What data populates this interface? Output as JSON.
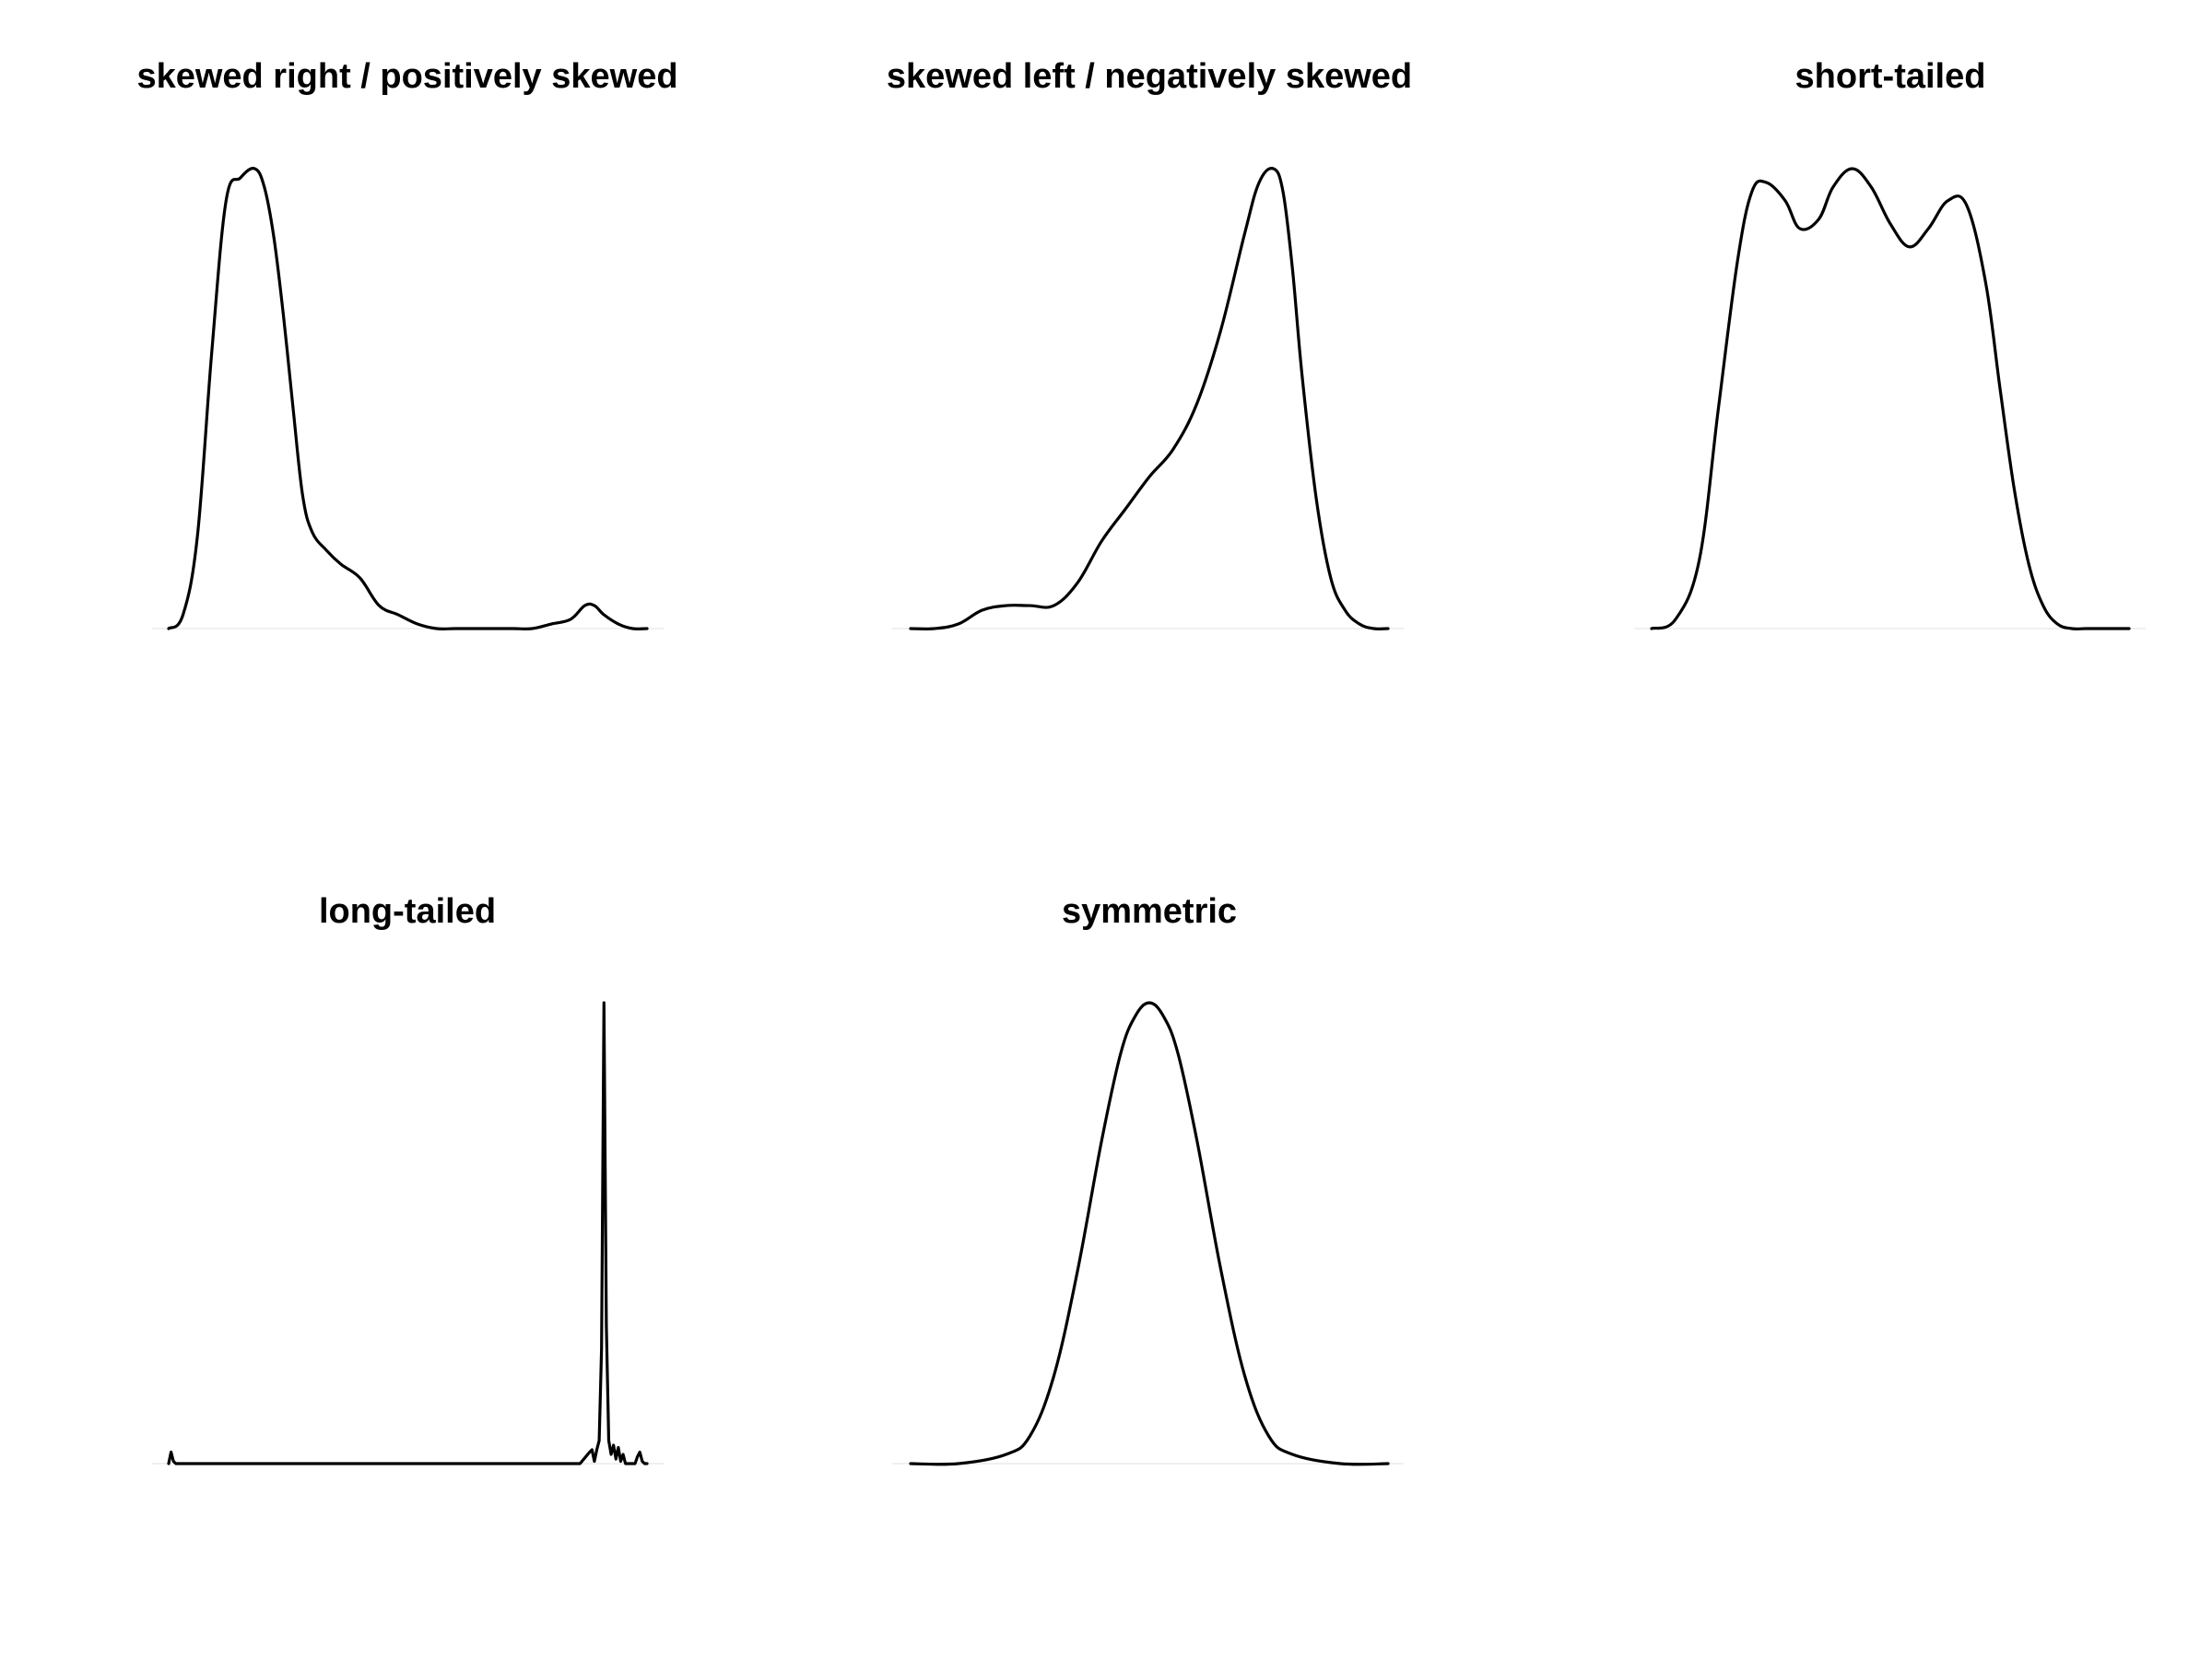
{
  "chart_data": [
    {
      "type": "line",
      "title": "skewed right / positively skewed",
      "xlabel": "",
      "ylabel": "",
      "grid": false,
      "x": [
        0.0,
        0.03,
        0.06,
        0.09,
        0.12,
        0.15,
        0.18,
        0.2,
        0.22,
        0.24,
        0.26,
        0.28,
        0.3,
        0.33,
        0.36,
        0.4,
        0.44,
        0.48,
        0.52,
        0.56,
        0.6,
        0.64,
        0.68,
        0.72,
        0.76,
        0.8,
        0.84,
        0.87,
        0.89,
        0.91,
        0.94,
        0.97,
        1.0
      ],
      "series": [
        {
          "values": [
            0.0,
            0.03,
            0.2,
            0.6,
            0.93,
            0.98,
            1.0,
            0.96,
            0.85,
            0.68,
            0.48,
            0.29,
            0.21,
            0.17,
            0.14,
            0.11,
            0.05,
            0.03,
            0.01,
            0.0,
            0.0,
            0.0,
            0.0,
            0.0,
            0.0,
            0.01,
            0.02,
            0.05,
            0.05,
            0.03,
            0.01,
            0.0,
            0.0
          ]
        }
      ]
    },
    {
      "type": "line",
      "title": "skewed left / negatively skewed",
      "xlabel": "",
      "ylabel": "",
      "grid": false,
      "x": [
        0.0,
        0.05,
        0.1,
        0.15,
        0.2,
        0.25,
        0.3,
        0.35,
        0.4,
        0.45,
        0.5,
        0.55,
        0.6,
        0.65,
        0.7,
        0.73,
        0.76,
        0.78,
        0.8,
        0.82,
        0.85,
        0.88,
        0.91,
        0.94,
        0.97,
        1.0
      ],
      "series": [
        {
          "values": [
            0.0,
            0.0,
            0.01,
            0.04,
            0.05,
            0.05,
            0.05,
            0.1,
            0.19,
            0.26,
            0.33,
            0.39,
            0.49,
            0.65,
            0.86,
            0.97,
            1.0,
            0.95,
            0.78,
            0.55,
            0.28,
            0.11,
            0.04,
            0.01,
            0.0,
            0.0
          ]
        }
      ]
    },
    {
      "type": "line",
      "title": "short-tailed",
      "xlabel": "",
      "ylabel": "",
      "grid": false,
      "x": [
        0.0,
        0.05,
        0.1,
        0.14,
        0.18,
        0.21,
        0.24,
        0.28,
        0.31,
        0.35,
        0.38,
        0.42,
        0.46,
        0.5,
        0.54,
        0.58,
        0.62,
        0.66,
        0.7,
        0.73,
        0.76,
        0.79,
        0.82,
        0.85,
        0.88,
        0.91,
        0.94,
        0.97,
        1.0
      ],
      "series": [
        {
          "values": [
            0.0,
            0.02,
            0.15,
            0.48,
            0.8,
            0.95,
            0.97,
            0.93,
            0.87,
            0.89,
            0.96,
            1.0,
            0.96,
            0.88,
            0.83,
            0.87,
            0.93,
            0.92,
            0.75,
            0.52,
            0.3,
            0.14,
            0.05,
            0.01,
            0.0,
            0.0,
            0.0,
            0.0,
            0.0
          ]
        }
      ]
    },
    {
      "type": "line",
      "title": "long-tailed",
      "xlabel": "",
      "ylabel": "",
      "grid": false,
      "x": [
        0.0,
        0.005,
        0.01,
        0.015,
        0.03,
        0.1,
        0.2,
        0.3,
        0.4,
        0.5,
        0.6,
        0.7,
        0.8,
        0.86,
        0.88,
        0.885,
        0.89,
        0.895,
        0.9,
        0.905,
        0.91,
        0.915,
        0.92,
        0.925,
        0.93,
        0.935,
        0.94,
        0.945,
        0.95,
        0.955,
        0.96,
        0.965,
        0.97,
        0.975,
        0.98,
        0.985,
        0.99,
        0.995,
        1.0
      ],
      "series": [
        {
          "values": [
            0.0,
            0.025,
            0.005,
            0.0,
            0.0,
            0.0,
            0.0,
            0.0,
            0.0,
            0.0,
            0.0,
            0.0,
            0.0,
            0.0,
            0.025,
            0.03,
            0.005,
            0.03,
            0.05,
            0.25,
            1.0,
            0.3,
            0.05,
            0.02,
            0.04,
            0.01,
            0.035,
            0.005,
            0.02,
            0.0,
            0.0,
            0.0,
            0.0,
            0.0,
            0.015,
            0.025,
            0.005,
            0.0,
            0.0
          ]
        }
      ]
    },
    {
      "type": "line",
      "title": "symmetric",
      "xlabel": "",
      "ylabel": "",
      "grid": false,
      "x": [
        0.0,
        0.1,
        0.2,
        0.25,
        0.3,
        0.35,
        0.4,
        0.44,
        0.47,
        0.5,
        0.53,
        0.56,
        0.6,
        0.65,
        0.7,
        0.75,
        0.8,
        0.9,
        1.0
      ],
      "series": [
        {
          "values": [
            0.0,
            0.0,
            0.02,
            0.06,
            0.19,
            0.42,
            0.7,
            0.89,
            0.97,
            1.0,
            0.97,
            0.89,
            0.7,
            0.42,
            0.19,
            0.06,
            0.02,
            0.0,
            0.0
          ]
        }
      ]
    }
  ]
}
